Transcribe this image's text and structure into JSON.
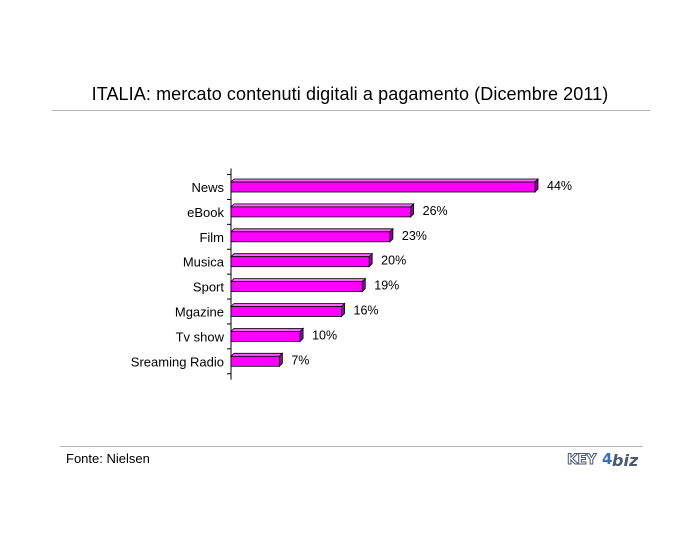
{
  "header": {
    "title": "ITALIA: mercato contenuti digitali a pagamento (Dicembre 2011)"
  },
  "chart_data": {
    "type": "bar",
    "orientation": "horizontal",
    "title": "ITALIA: mercato contenuti digitali a pagamento (Dicembre 2011)",
    "categories": [
      "News",
      "eBook",
      "Film",
      "Musica",
      "Sport",
      "Mgazine",
      "Tv show",
      "Sreaming Radio"
    ],
    "values": [
      44,
      26,
      23,
      20,
      19,
      16,
      10,
      7
    ],
    "value_labels": [
      "44%",
      "26%",
      "23%",
      "20%",
      "19%",
      "16%",
      "10%",
      "7%"
    ],
    "unit": "%",
    "xlim": [
      0,
      44
    ],
    "bar_color": "#ff00ff",
    "bar_style": "3d",
    "grid": false,
    "legend": "none"
  },
  "footer": {
    "source": "Fonte: Nielsen",
    "logo": {
      "part1": "KEY",
      "part2": "4",
      "part3": "biz"
    }
  }
}
